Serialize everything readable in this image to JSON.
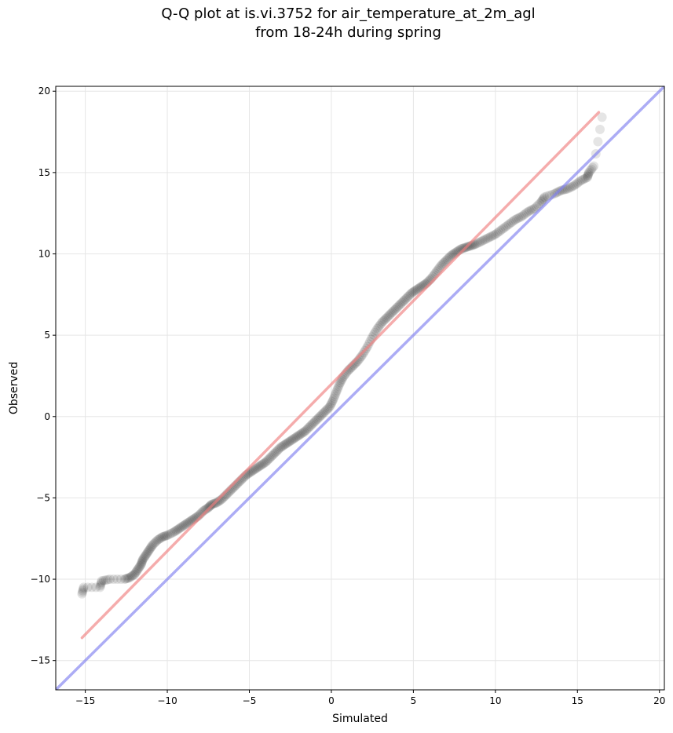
{
  "chart_data": {
    "type": "scatter",
    "title_line1": "Q-Q plot at is.vi.3752 for air_temperature_at_2m_agl",
    "title_line2": "from 18-24h during spring",
    "xlabel": "Simulated",
    "ylabel": "Observed",
    "xlim": [
      -16.8,
      20.3
    ],
    "ylim": [
      -16.8,
      20.3
    ],
    "x_ticks": [
      -15,
      -10,
      -5,
      0,
      5,
      10,
      15,
      20
    ],
    "x_tick_labels": [
      "−15",
      "−10",
      "−5",
      "0",
      "5",
      "10",
      "15",
      "20"
    ],
    "y_ticks": [
      -15,
      -10,
      -5,
      0,
      5,
      10,
      15,
      20
    ],
    "y_tick_labels": [
      "−15",
      "−10",
      "−5",
      "0",
      "5",
      "10",
      "15",
      "20"
    ],
    "grid": true,
    "series": [
      {
        "kind": "points",
        "color": "#000000",
        "quantiles": [
          [
            -15.2,
            -10.9
          ],
          [
            -15.1,
            -10.5
          ],
          [
            -14.1,
            -10.5
          ],
          [
            -14.0,
            -10.1
          ],
          [
            -13.5,
            -10.0
          ],
          [
            -12.6,
            -10.0
          ],
          [
            -12.3,
            -9.9
          ],
          [
            -12.0,
            -9.7
          ],
          [
            -11.8,
            -9.4
          ],
          [
            -11.6,
            -9.1
          ],
          [
            -11.5,
            -8.8
          ],
          [
            -11.3,
            -8.5
          ],
          [
            -11.1,
            -8.2
          ],
          [
            -10.9,
            -7.9
          ],
          [
            -10.6,
            -7.6
          ],
          [
            -10.3,
            -7.4
          ],
          [
            -10.0,
            -7.3
          ],
          [
            -9.6,
            -7.1
          ],
          [
            -9.3,
            -6.9
          ],
          [
            -9.0,
            -6.7
          ],
          [
            -8.7,
            -6.5
          ],
          [
            -8.4,
            -6.3
          ],
          [
            -8.1,
            -6.1
          ],
          [
            -7.8,
            -5.8
          ],
          [
            -7.5,
            -5.6
          ],
          [
            -7.3,
            -5.4
          ],
          [
            -7.0,
            -5.3
          ],
          [
            -6.7,
            -5.1
          ],
          [
            -6.4,
            -4.8
          ],
          [
            -6.1,
            -4.5
          ],
          [
            -5.8,
            -4.2
          ],
          [
            -5.5,
            -3.9
          ],
          [
            -5.2,
            -3.6
          ],
          [
            -4.9,
            -3.4
          ],
          [
            -4.6,
            -3.2
          ],
          [
            -4.3,
            -3.0
          ],
          [
            -4.0,
            -2.8
          ],
          [
            -3.7,
            -2.5
          ],
          [
            -3.4,
            -2.2
          ],
          [
            -3.1,
            -1.9
          ],
          [
            -2.8,
            -1.7
          ],
          [
            -2.5,
            -1.5
          ],
          [
            -2.2,
            -1.3
          ],
          [
            -1.9,
            -1.1
          ],
          [
            -1.6,
            -0.9
          ],
          [
            -1.3,
            -0.6
          ],
          [
            -1.0,
            -0.3
          ],
          [
            -0.7,
            0.0
          ],
          [
            -0.4,
            0.3
          ],
          [
            -0.1,
            0.6
          ],
          [
            0.1,
            1.0
          ],
          [
            0.3,
            1.5
          ],
          [
            0.5,
            2.0
          ],
          [
            0.7,
            2.4
          ],
          [
            1.0,
            2.8
          ],
          [
            1.3,
            3.1
          ],
          [
            1.6,
            3.4
          ],
          [
            1.9,
            3.8
          ],
          [
            2.2,
            4.3
          ],
          [
            2.5,
            4.9
          ],
          [
            2.8,
            5.4
          ],
          [
            3.1,
            5.8
          ],
          [
            3.4,
            6.1
          ],
          [
            3.7,
            6.4
          ],
          [
            4.0,
            6.7
          ],
          [
            4.3,
            7.0
          ],
          [
            4.6,
            7.3
          ],
          [
            4.9,
            7.6
          ],
          [
            5.2,
            7.8
          ],
          [
            5.5,
            8.0
          ],
          [
            5.8,
            8.2
          ],
          [
            6.1,
            8.5
          ],
          [
            6.4,
            8.9
          ],
          [
            6.7,
            9.3
          ],
          [
            7.0,
            9.6
          ],
          [
            7.3,
            9.9
          ],
          [
            7.6,
            10.1
          ],
          [
            7.9,
            10.3
          ],
          [
            8.2,
            10.4
          ],
          [
            8.5,
            10.5
          ],
          [
            8.8,
            10.6
          ],
          [
            9.2,
            10.8
          ],
          [
            9.6,
            11.0
          ],
          [
            10.0,
            11.2
          ],
          [
            10.4,
            11.5
          ],
          [
            10.8,
            11.8
          ],
          [
            11.2,
            12.1
          ],
          [
            11.6,
            12.3
          ],
          [
            12.0,
            12.6
          ],
          [
            12.4,
            12.8
          ],
          [
            12.8,
            13.2
          ],
          [
            13.0,
            13.5
          ],
          [
            13.6,
            13.7
          ],
          [
            14.0,
            13.9
          ],
          [
            14.4,
            14.0
          ],
          [
            14.8,
            14.2
          ],
          [
            15.2,
            14.5
          ],
          [
            15.6,
            14.7
          ],
          [
            15.7,
            15.0
          ],
          [
            16.0,
            15.4
          ],
          [
            16.5,
            18.4
          ]
        ]
      },
      {
        "kind": "line",
        "color": "#f08080",
        "points": [
          [
            -15.2,
            -13.6
          ],
          [
            16.3,
            18.7
          ]
        ]
      },
      {
        "kind": "line",
        "color": "#8080f0",
        "points": [
          [
            -16.8,
            -16.8
          ],
          [
            20.3,
            20.3
          ]
        ]
      }
    ]
  }
}
